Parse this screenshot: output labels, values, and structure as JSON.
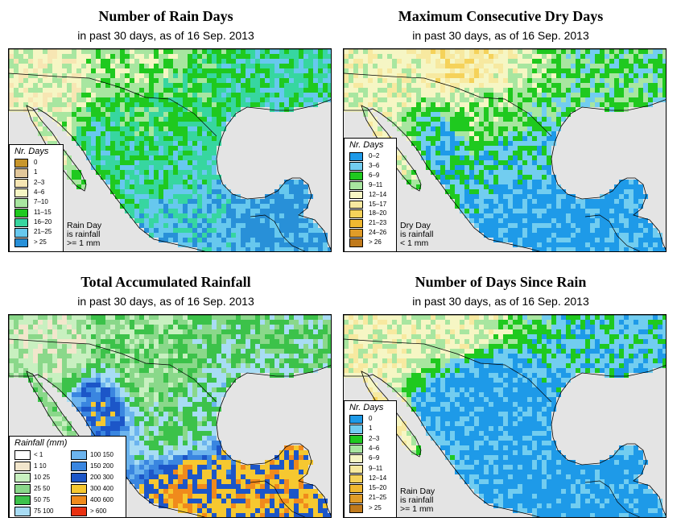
{
  "common": {
    "subtitle_prefix": "in past 30 days, as of",
    "date": "16 Sep. 2013"
  },
  "chart_data": [
    {
      "type": "heatmap",
      "id": "rain-days",
      "title": "Number of Rain Days",
      "legend_title": "Nr. Days",
      "legend_placement": "bottom-left",
      "note": [
        "Rain Day",
        "is rainfall",
        ">= 1 mm"
      ],
      "classes": [
        {
          "label": "0",
          "color": "#c8962c"
        },
        {
          "label": "1",
          "color": "#e2c79a"
        },
        {
          "label": "2–3",
          "color": "#f7e6b3"
        },
        {
          "label": "4–6",
          "color": "#f6f6c4"
        },
        {
          "label": "7–10",
          "color": "#a8e6a0"
        },
        {
          "label": "11–15",
          "color": "#1fc91f"
        },
        {
          "label": "16–20",
          "color": "#37d6a0"
        },
        {
          "label": "21–25",
          "color": "#67c8ee"
        },
        {
          "label": "> 25",
          "color": "#2890d8"
        }
      ],
      "regions": {
        "north_plateau": 5,
        "northwest_coast": 3,
        "baja": 3,
        "sierra_west": 6,
        "central": 6,
        "south": 7,
        "yucatan": 8,
        "us_south": 4,
        "us_east": 6
      }
    },
    {
      "type": "heatmap",
      "id": "dry-days",
      "title": "Maximum Consecutive Dry Days",
      "legend_title": "Nr. Days",
      "legend_placement": "bottom-left",
      "note": [
        "Dry Day",
        "is rainfall",
        "< 1 mm"
      ],
      "classes": [
        {
          "label": "0–2",
          "color": "#1e9ae8"
        },
        {
          "label": "3–6",
          "color": "#72cdf0"
        },
        {
          "label": "6–9",
          "color": "#1fc91f"
        },
        {
          "label": "9–11",
          "color": "#a8e6a0"
        },
        {
          "label": "12–14",
          "color": "#f6f6c4"
        },
        {
          "label": "15–17",
          "color": "#f7e9a0"
        },
        {
          "label": "18–20",
          "color": "#f5d25a"
        },
        {
          "label": "21–23",
          "color": "#f0b830"
        },
        {
          "label": "24–26",
          "color": "#e09c28"
        },
        {
          "label": "> 26",
          "color": "#c07a1c"
        }
      ],
      "regions": {
        "north_plateau": 3,
        "northwest_coast": 4,
        "baja": 4,
        "sierra_west": 1,
        "central": 1,
        "south": 0,
        "yucatan": 0,
        "us_south": 5,
        "us_east": 2
      }
    },
    {
      "type": "heatmap",
      "id": "total-rainfall",
      "title": "Total Accumulated Rainfall",
      "legend_title": "Rainfall (mm)",
      "legend_placement": "bottom-left",
      "note": [],
      "classes": [
        {
          "label": "< 1",
          "color": "#ffffff"
        },
        {
          "label": "1   10",
          "color": "#f2e6cc"
        },
        {
          "label": "10   25",
          "color": "#c8f0c0"
        },
        {
          "label": "25   50",
          "color": "#8ad88a"
        },
        {
          "label": "50   75",
          "color": "#3cc24a"
        },
        {
          "label": "75  100",
          "color": "#a8dcf4"
        },
        {
          "label": "100  150",
          "color": "#6cb4ee"
        },
        {
          "label": "150  200",
          "color": "#3a86e0"
        },
        {
          "label": "200  300",
          "color": "#1c56c8"
        },
        {
          "label": "300  400",
          "color": "#f6c830"
        },
        {
          "label": "400  600",
          "color": "#f08a1c"
        },
        {
          "label": "> 600",
          "color": "#e83010"
        }
      ],
      "regions": {
        "north_plateau": 3,
        "northwest_coast": 2,
        "baja": 3,
        "sierra_west": 8,
        "central": 4,
        "south": 9,
        "yucatan": 9,
        "us_south": 3,
        "us_east": 4
      }
    },
    {
      "type": "heatmap",
      "id": "days-since-rain",
      "title": "Number of Days Since Rain",
      "legend_title": "Nr. Days",
      "legend_placement": "bottom-left",
      "note": [
        "Rain Day",
        "is rainfall",
        ">= 1 mm"
      ],
      "classes": [
        {
          "label": "0",
          "color": "#1e9ae8"
        },
        {
          "label": "1",
          "color": "#72cdf0"
        },
        {
          "label": "2–3",
          "color": "#1fc91f"
        },
        {
          "label": "4–6",
          "color": "#a8e6a0"
        },
        {
          "label": "6–9",
          "color": "#f6f6c4"
        },
        {
          "label": "9–11",
          "color": "#f7e9a0"
        },
        {
          "label": "12–14",
          "color": "#f5d25a"
        },
        {
          "label": "15–20",
          "color": "#f0b830"
        },
        {
          "label": "21–25",
          "color": "#e09c28"
        },
        {
          "label": "> 25",
          "color": "#c07a1c"
        }
      ],
      "regions": {
        "north_plateau": 0,
        "northwest_coast": 4,
        "baja": 5,
        "sierra_west": 0,
        "central": 0,
        "south": 0,
        "yucatan": 0,
        "us_south": 4,
        "us_east": 1
      }
    }
  ]
}
